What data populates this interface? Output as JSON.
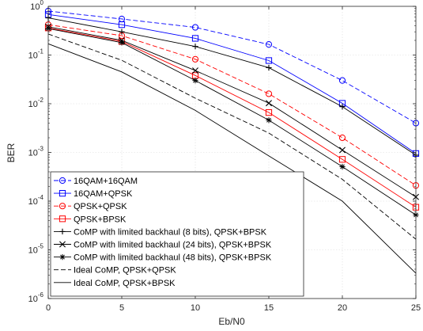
{
  "chart_data": {
    "type": "line",
    "xlabel": "Eb/N0",
    "ylabel": "BER",
    "x": [
      0,
      5,
      10,
      15,
      20,
      25
    ],
    "xlim": [
      0,
      25
    ],
    "ylim": [
      1e-06,
      1
    ],
    "yscale": "log",
    "grid": true,
    "legend_position": "bottom-left",
    "x_ticks": [
      "0",
      "5",
      "10",
      "15",
      "20",
      "25"
    ],
    "y_ticks": [
      {
        "base": "10",
        "exp": "0",
        "value": 1
      },
      {
        "base": "10",
        "exp": "-1",
        "value": 0.1
      },
      {
        "base": "10",
        "exp": "-2",
        "value": 0.01
      },
      {
        "base": "10",
        "exp": "-3",
        "value": 0.001
      },
      {
        "base": "10",
        "exp": "-4",
        "value": 0.0001
      },
      {
        "base": "10",
        "exp": "-5",
        "value": 1e-05
      },
      {
        "base": "10",
        "exp": "-6",
        "value": 1e-06
      }
    ],
    "series": [
      {
        "name": "16QAM+16QAM",
        "color": "#0000ff",
        "dash": "dashed",
        "marker": "circle",
        "values": [
          0.8,
          0.55,
          0.37,
          0.165,
          0.03,
          0.004
        ]
      },
      {
        "name": "16QAM+QPSK",
        "color": "#0000ff",
        "dash": "solid",
        "marker": "square",
        "values": [
          0.68,
          0.42,
          0.22,
          0.077,
          0.0102,
          0.00095
        ]
      },
      {
        "name": "QPSK+QPSK",
        "color": "#ff0000",
        "dash": "dashed",
        "marker": "circle",
        "values": [
          0.42,
          0.25,
          0.082,
          0.016,
          0.002,
          0.00021
        ]
      },
      {
        "name": "QPSK+BPSK",
        "color": "#ff0000",
        "dash": "solid",
        "marker": "square",
        "values": [
          0.36,
          0.19,
          0.038,
          0.0066,
          0.00072,
          7.5e-05
        ]
      },
      {
        "name": "CoMP with limited backhaul (8 bits), QPSK+BPSK",
        "color": "#000000",
        "dash": "solid",
        "marker": "plus",
        "values": [
          0.58,
          0.3,
          0.15,
          0.055,
          0.0087,
          0.00088
        ]
      },
      {
        "name": "CoMP with limited backhaul (24 bits), QPSK+BPSK",
        "color": "#000000",
        "dash": "solid",
        "marker": "x",
        "values": [
          0.38,
          0.2,
          0.048,
          0.0103,
          0.00112,
          0.000122
        ]
      },
      {
        "name": "CoMP with limited backhaul (48 bits), QPSK+BPSK",
        "color": "#000000",
        "dash": "solid",
        "marker": "star",
        "values": [
          0.35,
          0.18,
          0.03,
          0.0046,
          0.00051,
          5.2e-05
        ]
      },
      {
        "name": "Ideal CoMP, QPSK+QPSK",
        "color": "#000000",
        "dash": "dashed",
        "marker": "none",
        "values": [
          0.27,
          0.078,
          0.013,
          0.0025,
          0.00028,
          1.65e-05
        ]
      },
      {
        "name": "Ideal CoMP, QPSK+BPSK",
        "color": "#000000",
        "dash": "solid",
        "marker": "none",
        "values": [
          0.17,
          0.045,
          0.0073,
          0.00085,
          0.0001,
          3.3e-06
        ]
      }
    ]
  }
}
